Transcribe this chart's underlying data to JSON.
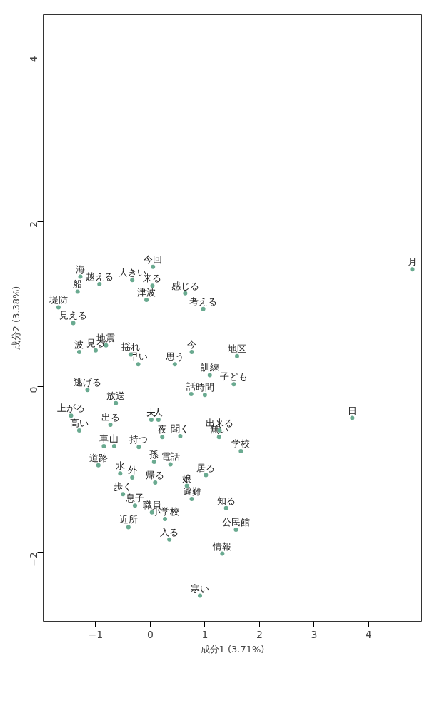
{
  "chart_data": {
    "type": "scatter",
    "xlabel": "成分1 (3.71%)",
    "ylabel": "成分2 (3.38%)",
    "xlim": [
      -1.96,
      4.97
    ],
    "ylim": [
      -2.84,
      4.5
    ],
    "xticks": [
      -1,
      0,
      1,
      2,
      3,
      4
    ],
    "yticks": [
      -2,
      0,
      2,
      4
    ],
    "grid": false,
    "marker": "circle",
    "series": [
      {
        "color": "#6aaa90",
        "x": [
          -1.68,
          -1.28,
          -1.33,
          -1.41,
          -1.3,
          -0.33,
          -0.93,
          0.04,
          0.05,
          -0.07,
          0.97,
          0.64,
          -0.81,
          -1.0,
          -0.36,
          -0.22,
          0.45,
          0.76,
          1.09,
          1.59,
          1.53,
          0.75,
          1.0,
          1.27,
          1.26,
          1.66,
          1.39,
          1.57,
          1.32,
          0.91,
          0.76,
          0.67,
          1.02,
          0.09,
          0.03,
          0.27,
          0.35,
          -1.15,
          -1.3,
          -1.45,
          -0.73,
          -0.63,
          0.02,
          0.15,
          0.22,
          0.55,
          -0.21,
          -0.85,
          -0.66,
          -0.95,
          0.37,
          0.07,
          -0.55,
          -0.33,
          -0.5,
          -0.28,
          -0.4,
          4.8,
          3.7
        ],
        "values": [
          0.96,
          1.33,
          1.15,
          0.77,
          0.42,
          1.29,
          1.24,
          1.22,
          1.45,
          1.05,
          0.94,
          1.13,
          0.5,
          0.44,
          0.39,
          0.27,
          0.27,
          0.42,
          0.14,
          0.37,
          0.03,
          -0.09,
          -0.1,
          -0.53,
          -0.61,
          -0.78,
          -1.47,
          -1.73,
          -2.02,
          -2.53,
          -1.36,
          -1.2,
          -1.07,
          -1.16,
          -1.52,
          -1.6,
          -1.85,
          -0.04,
          -0.53,
          -0.35,
          -0.46,
          -0.2,
          -0.4,
          -0.4,
          -0.61,
          -0.6,
          -0.73,
          -0.72,
          -0.72,
          -0.95,
          -0.94,
          -0.91,
          -1.05,
          -1.1,
          -1.3,
          -1.44,
          -1.7,
          1.42,
          -0.38
        ]
      }
    ],
    "annotations": [
      {
        "text": "堤防",
        "x": -1.68,
        "y": 0.96
      },
      {
        "text": "海",
        "x": -1.28,
        "y": 1.33
      },
      {
        "text": "船",
        "x": -1.33,
        "y": 1.15
      },
      {
        "text": "見える",
        "x": -1.41,
        "y": 0.77
      },
      {
        "text": "波",
        "x": -1.3,
        "y": 0.42
      },
      {
        "text": "大きい",
        "x": -0.33,
        "y": 1.29
      },
      {
        "text": "越える",
        "x": -0.93,
        "y": 1.24
      },
      {
        "text": "来る",
        "x": 0.04,
        "y": 1.22
      },
      {
        "text": "今回",
        "x": 0.05,
        "y": 1.45
      },
      {
        "text": "津波",
        "x": -0.07,
        "y": 1.05
      },
      {
        "text": "考える",
        "x": 0.97,
        "y": 0.94
      },
      {
        "text": "感じる",
        "x": 0.64,
        "y": 1.13
      },
      {
        "text": "地震",
        "x": -0.81,
        "y": 0.5
      },
      {
        "text": "見る",
        "x": -1.0,
        "y": 0.44
      },
      {
        "text": "揺れ",
        "x": -0.36,
        "y": 0.39
      },
      {
        "text": "早い",
        "x": -0.22,
        "y": 0.27
      },
      {
        "text": "思う",
        "x": 0.45,
        "y": 0.27
      },
      {
        "text": "今",
        "x": 0.76,
        "y": 0.42
      },
      {
        "text": "訓練",
        "x": 1.09,
        "y": 0.14
      },
      {
        "text": "地区",
        "x": 1.59,
        "y": 0.37
      },
      {
        "text": "子ども",
        "x": 1.53,
        "y": 0.03
      },
      {
        "text": "話",
        "x": 0.75,
        "y": -0.09
      },
      {
        "text": "時間",
        "x": 1.0,
        "y": -0.1
      },
      {
        "text": "出来る",
        "x": 1.27,
        "y": -0.53
      },
      {
        "text": "無い",
        "x": 1.26,
        "y": -0.61
      },
      {
        "text": "学校",
        "x": 1.66,
        "y": -0.78
      },
      {
        "text": "知る",
        "x": 1.39,
        "y": -1.47
      },
      {
        "text": "公民館",
        "x": 1.57,
        "y": -1.73
      },
      {
        "text": "情報",
        "x": 1.32,
        "y": -2.02
      },
      {
        "text": "寒い",
        "x": 0.91,
        "y": -2.53
      },
      {
        "text": "避難",
        "x": 0.76,
        "y": -1.36
      },
      {
        "text": "娘",
        "x": 0.67,
        "y": -1.2
      },
      {
        "text": "居る",
        "x": 1.02,
        "y": -1.07
      },
      {
        "text": "帰る",
        "x": 0.09,
        "y": -1.16
      },
      {
        "text": "職員",
        "x": 0.03,
        "y": -1.52
      },
      {
        "text": "小学校",
        "x": 0.27,
        "y": -1.6
      },
      {
        "text": "入る",
        "x": 0.35,
        "y": -1.85
      },
      {
        "text": "逃げる",
        "x": -1.15,
        "y": -0.04
      },
      {
        "text": "高い",
        "x": -1.3,
        "y": -0.53
      },
      {
        "text": "上がる",
        "x": -1.45,
        "y": -0.35
      },
      {
        "text": "出る",
        "x": -0.73,
        "y": -0.46
      },
      {
        "text": "放送",
        "x": -0.63,
        "y": -0.2
      },
      {
        "text": "夫",
        "x": 0.02,
        "y": -0.4
      },
      {
        "text": "人",
        "x": 0.15,
        "y": -0.4
      },
      {
        "text": "夜",
        "x": 0.22,
        "y": -0.61
      },
      {
        "text": "聞く",
        "x": 0.55,
        "y": -0.6
      },
      {
        "text": "持つ",
        "x": -0.21,
        "y": -0.73
      },
      {
        "text": "車",
        "x": -0.85,
        "y": -0.72
      },
      {
        "text": "山",
        "x": -0.66,
        "y": -0.72
      },
      {
        "text": "道路",
        "x": -0.95,
        "y": -0.95
      },
      {
        "text": "電話",
        "x": 0.37,
        "y": -0.94
      },
      {
        "text": "孫",
        "x": 0.07,
        "y": -0.91
      },
      {
        "text": "水",
        "x": -0.55,
        "y": -1.05
      },
      {
        "text": "外",
        "x": -0.33,
        "y": -1.1
      },
      {
        "text": "歩く",
        "x": -0.5,
        "y": -1.3
      },
      {
        "text": "息子",
        "x": -0.28,
        "y": -1.44
      },
      {
        "text": "近所",
        "x": -0.4,
        "y": -1.7
      },
      {
        "text": "月",
        "x": 4.8,
        "y": 1.42
      },
      {
        "text": "日",
        "x": 3.7,
        "y": -0.38
      }
    ]
  }
}
